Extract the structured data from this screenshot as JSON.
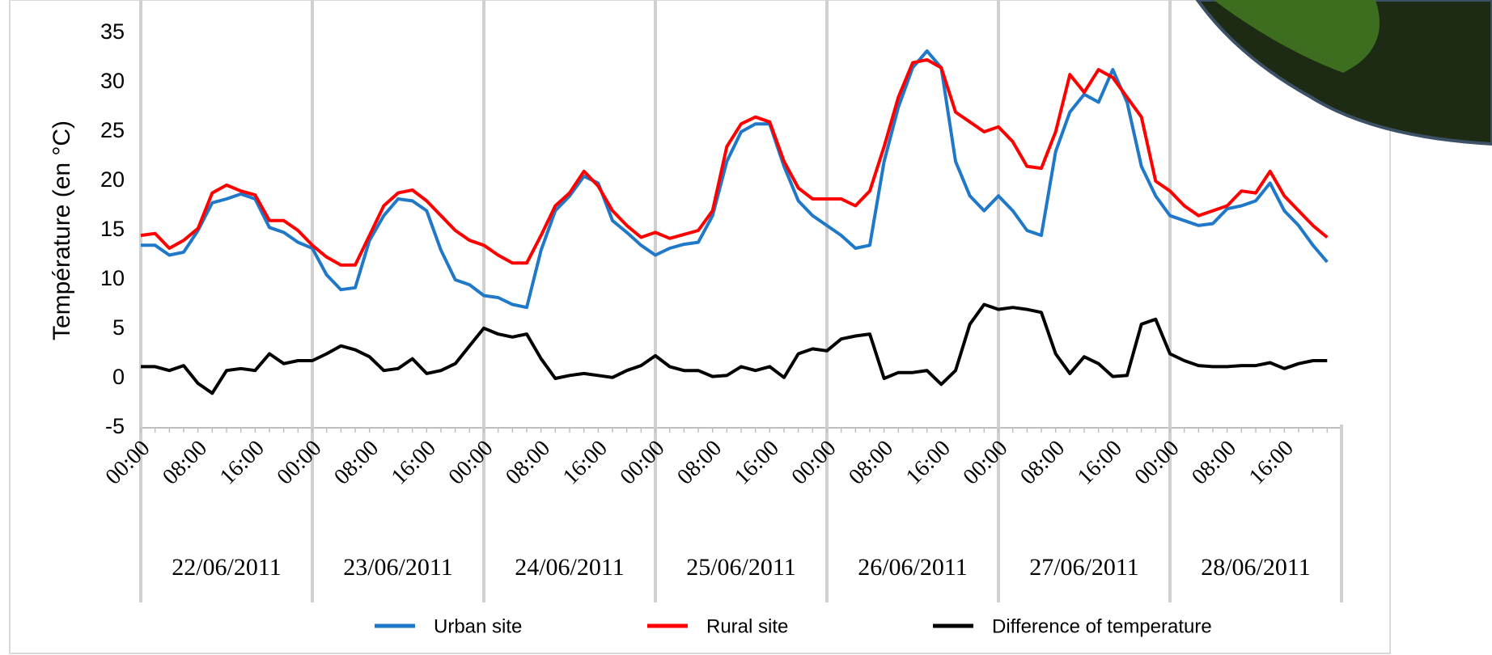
{
  "chart_data": {
    "type": "line",
    "y_label": "Température (en °C)",
    "ylim": [
      -5,
      35
    ],
    "yticks": [
      -5,
      0,
      5,
      10,
      15,
      20,
      25,
      30,
      35
    ],
    "grid": false,
    "legend": "bottom",
    "categories": [
      "00:00",
      null,
      null,
      null,
      "08:00",
      null,
      null,
      null,
      "16:00",
      null,
      null,
      null,
      "00:00",
      null,
      null,
      null,
      "08:00",
      null,
      null,
      null,
      "16:00",
      null,
      null,
      null,
      "00:00",
      null,
      null,
      null,
      "08:00",
      null,
      null,
      null,
      "16:00",
      null,
      null,
      null,
      "00:00",
      null,
      null,
      null,
      "08:00",
      null,
      null,
      null,
      "16:00",
      null,
      null,
      null,
      "00:00",
      null,
      null,
      null,
      "08:00",
      null,
      null,
      null,
      "16:00",
      null,
      null,
      null,
      "00:00",
      null,
      null,
      null,
      "08:00",
      null,
      null,
      null,
      "16:00",
      null,
      null,
      null,
      "00:00",
      null,
      null,
      null,
      "08:00",
      null,
      null,
      null,
      "16:00",
      null,
      null,
      null
    ],
    "day_labels": [
      "22/06/2011",
      "23/06/2011",
      "24/06/2011",
      "25/06/2011",
      "26/06/2011",
      "27/06/2011",
      "28/06/2011"
    ],
    "series": [
      {
        "name": "Urban site",
        "color": "#1f78c8",
        "values": [
          13.5,
          13.5,
          12.5,
          12.8,
          15,
          17.8,
          18.2,
          18.7,
          18.2,
          15.3,
          14.8,
          13.8,
          13.2,
          10.5,
          9,
          9.2,
          14,
          16.5,
          18.2,
          18,
          17,
          13,
          10,
          9.5,
          8.4,
          8.2,
          7.5,
          7.2,
          13,
          17,
          18.5,
          20.5,
          19.8,
          16,
          14.8,
          13.5,
          12.5,
          13.2,
          13.6,
          13.8,
          16.5,
          22,
          25,
          25.8,
          25.8,
          21.5,
          18,
          16.5,
          15.5,
          14.5,
          13.2,
          13.5,
          22,
          27.5,
          31.5,
          33.2,
          31.5,
          22,
          18.5,
          17,
          18.5,
          17,
          15,
          14.5,
          23,
          27,
          28.8,
          28,
          31.3,
          28,
          21.5,
          18.5,
          16.5,
          16,
          15.5,
          15.7,
          17.2,
          17.5,
          18,
          19.8,
          17,
          15.5,
          13.5,
          11.8
        ]
      },
      {
        "name": "Rural site",
        "color": "#ff0000",
        "values": [
          14.5,
          14.7,
          13.2,
          14,
          15.2,
          18.8,
          19.6,
          19,
          18.6,
          16,
          16,
          15,
          13.5,
          12.3,
          11.5,
          11.5,
          14.5,
          17.5,
          18.8,
          19.1,
          18,
          16.5,
          15,
          14,
          13.5,
          12.5,
          11.7,
          11.7,
          14.5,
          17.5,
          18.8,
          21,
          19.5,
          17,
          15.5,
          14.3,
          14.8,
          14.2,
          14.6,
          15,
          17,
          23.5,
          25.8,
          26.5,
          26,
          22,
          19.3,
          18.2,
          18.2,
          18.2,
          17.5,
          19,
          23.5,
          28.5,
          32,
          32.3,
          31.5,
          27,
          26,
          25,
          25.5,
          24,
          21.5,
          21.3,
          25,
          30.8,
          29,
          31.3,
          30.5,
          28.5,
          26.5,
          20,
          19,
          17.5,
          16.5,
          17,
          17.5,
          19,
          18.8,
          21,
          18.5,
          17,
          15.5,
          14.3
        ]
      },
      {
        "name": "Difference of temperature",
        "color": "#000000",
        "values": [
          1.2,
          1.2,
          0.8,
          1.3,
          -0.5,
          -1.5,
          0.8,
          1,
          0.8,
          2.5,
          1.5,
          1.8,
          1.8,
          2.5,
          3.3,
          2.9,
          2.2,
          0.8,
          1,
          2,
          0.5,
          0.8,
          1.5,
          3.3,
          5.1,
          4.5,
          4.2,
          4.5,
          2,
          0,
          0.3,
          0.5,
          0.3,
          0.1,
          0.8,
          1.3,
          2.3,
          1.2,
          0.8,
          0.8,
          0.2,
          0.3,
          1.2,
          0.8,
          1.2,
          0.1,
          2.5,
          3,
          2.8,
          4,
          4.3,
          4.5,
          0,
          0.6,
          0.6,
          0.8,
          -0.6,
          0.8,
          5.5,
          7.5,
          7,
          7.2,
          7,
          6.7,
          2.5,
          0.5,
          2.2,
          1.5,
          0.2,
          0.3,
          5.5,
          6,
          2.5,
          1.8,
          1.3,
          1.2,
          1.2,
          1.3,
          1.3,
          1.6,
          1,
          1.5,
          1.8,
          1.8
        ]
      }
    ]
  }
}
